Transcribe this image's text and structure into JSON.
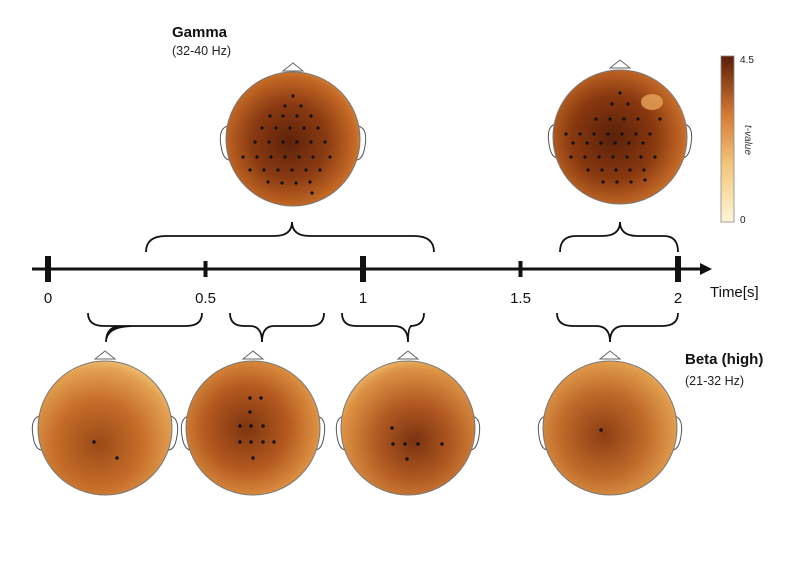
{
  "bands": {
    "gamma": {
      "name": "Gamma",
      "range": "(32-40 Hz)"
    },
    "beta": {
      "name": "Beta (high)",
      "range": "(21-32 Hz)"
    }
  },
  "timeline": {
    "axis_label": "Time[s]",
    "ticks": [
      "0",
      "0.5",
      "1",
      "1.5",
      "2"
    ],
    "tick_values": [
      0,
      0.5,
      1,
      1.5,
      2
    ]
  },
  "colorbar": {
    "title": "t-value",
    "max_label": "4.5",
    "min_label": "0",
    "colors": {
      "low": "#fff4cc",
      "mid": "#d9803a",
      "high": "#5a1e08"
    }
  },
  "windows": {
    "gamma": [
      {
        "from": 0.31,
        "to": 1.23
      },
      {
        "from": 1.65,
        "to": 2.0
      }
    ],
    "beta": [
      {
        "from": 0.12,
        "to": 0.49
      },
      {
        "from": 0.6,
        "to": 0.87
      },
      {
        "from": 0.93,
        "to": 1.2
      },
      {
        "from": 1.65,
        "to": 2.0
      }
    ]
  }
}
